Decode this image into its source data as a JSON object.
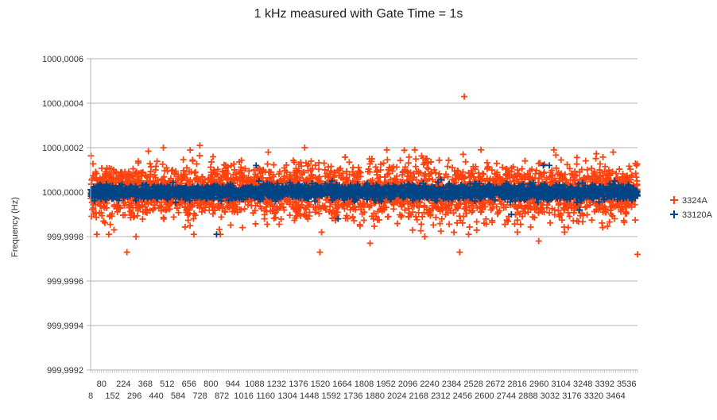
{
  "chart_data": {
    "type": "scatter",
    "title": "1 kHz measured with Gate Time = 1s",
    "xlabel": "",
    "ylabel": "Frequency (Hz)",
    "ylim": [
      999.9992,
      1000.0006
    ],
    "y_ticks": [
      "1000,0006",
      "1000,0004",
      "1000,0002",
      "1000,0000",
      "999,9998",
      "999,9996",
      "999,9994",
      "999,9992"
    ],
    "y_tick_values": [
      1000.0006,
      1000.0004,
      1000.0002,
      1000.0,
      999.9998,
      999.9996,
      999.9994,
      999.9992
    ],
    "x_range": [
      1,
      3600
    ],
    "x_ticks_row1": [
      "80",
      "224",
      "368",
      "512",
      "656",
      "800",
      "944",
      "1088",
      "1232",
      "1376",
      "1520",
      "1664",
      "1808",
      "1952",
      "2096",
      "2240",
      "2384",
      "2528",
      "2672",
      "2816",
      "2960",
      "3104",
      "3248",
      "3392",
      "3536"
    ],
    "x_ticks_row2": [
      "8",
      "152",
      "296",
      "440",
      "584",
      "728",
      "872",
      "1016",
      "1160",
      "1304",
      "1448",
      "1592",
      "1736",
      "1880",
      "2024",
      "2168",
      "2312",
      "2456",
      "2600",
      "2744",
      "2888",
      "3032",
      "3176",
      "3320",
      "3464"
    ],
    "grid": "horizontal",
    "legend_position": "right",
    "series": [
      {
        "name": "3324A",
        "color": "#ff420e",
        "marker": "+",
        "typical_spread": 6e-05,
        "points": [
          [
            2460,
            1000.00043
          ],
          [
            3600,
            999.99972
          ],
          [
            240,
            999.99973
          ],
          [
            1510,
            999.99973
          ],
          [
            2430,
            999.99973
          ],
          [
            1840,
            999.99977
          ],
          [
            480,
            1000.0002
          ],
          [
            1410,
            1000.0002
          ],
          [
            2570,
            1000.00019
          ],
          [
            720,
            1000.00021
          ],
          [
            3050,
            1000.00019
          ],
          [
            3440,
            1000.00018
          ],
          [
            1170,
            1000.00018
          ],
          [
            1950,
            1000.00019
          ],
          [
            2200,
            999.9998
          ],
          [
            2810,
            999.99982
          ],
          [
            3120,
            999.99982
          ],
          [
            2950,
            999.99978
          ],
          [
            680,
            999.99981
          ],
          [
            300,
            999.9998
          ]
        ]
      },
      {
        "name": "33120A",
        "color": "#004586",
        "marker": "+",
        "typical_spread": 1.5e-05,
        "points": [
          [
            1090,
            1000.00012
          ],
          [
            2980,
            1000.00012
          ],
          [
            3020,
            1000.00012
          ],
          [
            1630,
            999.99988
          ],
          [
            830,
            999.99981
          ],
          [
            2530,
            999.99996
          ],
          [
            3220,
            999.99992
          ],
          [
            2770,
            999.9999
          ],
          [
            3450,
            1000.00005
          ],
          [
            2190,
            1000.00004
          ],
          [
            860,
            999.99996
          ],
          [
            1590,
            1000.00005
          ]
        ]
      }
    ]
  }
}
